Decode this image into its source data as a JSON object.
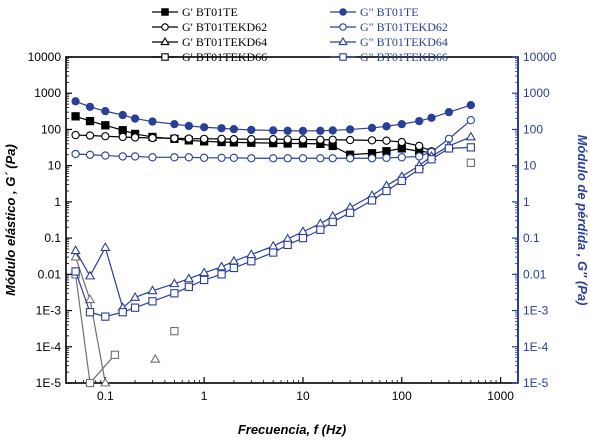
{
  "colors": {
    "gprime": "#000000",
    "gdouble": "#2a3f98",
    "gray": "#707070"
  },
  "chart_data": {
    "type": "scatter",
    "title": "",
    "xlabel": "Frecuencia, f (Hz)",
    "ylabel_left": "Módulo elástico , G´ (Pa)",
    "ylabel_right": "Módulo de pérdida , G'' (Pa)",
    "x_scale": "log",
    "y_scale": "log",
    "xlim": [
      0.04,
      1500
    ],
    "ylim": [
      1e-05,
      10000
    ],
    "x_ticks": [
      0.1,
      1,
      10,
      100,
      1000
    ],
    "x_tick_labels": [
      "0.1",
      "1",
      "10",
      "100",
      "1000"
    ],
    "y_ticks": [
      1e-05,
      0.0001,
      0.001,
      0.01,
      0.1,
      1,
      10,
      100,
      1000,
      10000
    ],
    "y_tick_labels": [
      "1E-5",
      "1E-4",
      "1E-3",
      "0.01",
      "0.1",
      "1",
      "10",
      "100",
      "1000",
      "10000"
    ],
    "grid": false,
    "legend_position": "top",
    "series": [
      {
        "name": "G' BT01TE",
        "axis": "left",
        "marker": "square-filled",
        "line": "solid",
        "color": "#000000",
        "x": [
          0.05,
          0.07,
          0.1,
          0.15,
          0.2,
          0.3,
          0.5,
          0.7,
          1,
          1.5,
          2,
          3,
          5,
          7,
          10,
          15,
          20,
          30,
          50,
          70,
          100,
          150,
          200
        ],
        "y": [
          230,
          170,
          130,
          95,
          75,
          62,
          55,
          50,
          47,
          45,
          44,
          43,
          42,
          41,
          41,
          40,
          35,
          20,
          22,
          25,
          30,
          25,
          23
        ]
      },
      {
        "name": "G' BT01TEKD62",
        "axis": "left",
        "marker": "circle-open",
        "line": "solid",
        "color": "#000000",
        "x": [
          0.05,
          0.07,
          0.1,
          0.15,
          0.2,
          0.3,
          0.5,
          0.7,
          1,
          1.5,
          2,
          3,
          5,
          7,
          10,
          15,
          20,
          30,
          50,
          70,
          100,
          150,
          200
        ],
        "y": [
          70,
          68,
          65,
          62,
          60,
          58,
          57,
          56,
          55,
          55,
          54,
          54,
          54,
          53,
          53,
          52,
          52,
          51,
          50,
          49,
          45,
          35,
          25
        ]
      },
      {
        "name": "G' BT01TEKD64",
        "axis": "left",
        "marker": "triangle-open",
        "line": "solid",
        "color": "#707070",
        "x": [
          0.05,
          0.07,
          0.1
        ],
        "y": [
          0.03,
          0.002,
          1e-05
        ]
      },
      {
        "name": "G' BT01TEKD64 (detached)",
        "axis": "left",
        "marker": "triangle-open",
        "line": "none",
        "color": "#707070",
        "x": [
          0.32
        ],
        "y": [
          4.5e-05
        ]
      },
      {
        "name": "G' BT01TEKD66",
        "axis": "left",
        "marker": "square-open",
        "line": "solid",
        "color": "#707070",
        "x": [
          0.05,
          0.07,
          0.125
        ],
        "y": [
          0.01,
          1e-05,
          6e-05
        ]
      },
      {
        "name": "G' BT01TEKD66 (detached)",
        "axis": "left",
        "marker": "square-open",
        "line": "none",
        "color": "#707070",
        "x": [
          0.5,
          500
        ],
        "y": [
          0.00027,
          12
        ]
      },
      {
        "name": "G\" BT01TE",
        "axis": "right",
        "marker": "circle-filled",
        "line": "solid",
        "color": "#2a3f98",
        "x": [
          0.05,
          0.07,
          0.1,
          0.15,
          0.2,
          0.3,
          0.5,
          0.7,
          1,
          1.5,
          2,
          3,
          5,
          7,
          10,
          15,
          20,
          30,
          50,
          70,
          100,
          150,
          200,
          300,
          500
        ],
        "y": [
          600,
          420,
          320,
          250,
          200,
          165,
          140,
          125,
          115,
          108,
          102,
          97,
          94,
          92,
          91,
          92,
          94,
          100,
          110,
          122,
          140,
          170,
          210,
          300,
          470
        ]
      },
      {
        "name": "G\" BT01TEKD62",
        "axis": "right",
        "marker": "circle-open",
        "line": "solid",
        "color": "#2a3f98",
        "x": [
          0.05,
          0.07,
          0.1,
          0.15,
          0.2,
          0.3,
          0.5,
          0.7,
          1,
          1.5,
          2,
          3,
          5,
          7,
          10,
          15,
          20,
          30,
          50,
          70,
          100,
          150,
          200,
          300,
          500
        ],
        "y": [
          21,
          20,
          19,
          18,
          18,
          17,
          17,
          17,
          16.5,
          16.5,
          16.5,
          16,
          16,
          16,
          16,
          16,
          16,
          16,
          16,
          16.5,
          17,
          18,
          24,
          55,
          180
        ]
      },
      {
        "name": "G\" BT01TEKD64",
        "axis": "right",
        "marker": "triangle-open",
        "line": "solid",
        "color": "#2a3f98",
        "x": [
          0.05,
          0.07,
          0.1,
          0.15,
          0.2,
          0.3,
          0.5,
          0.7,
          1,
          1.5,
          2,
          3,
          5,
          7,
          10,
          15,
          20,
          30,
          50,
          70,
          100,
          150,
          200,
          300,
          500
        ],
        "y": [
          0.045,
          0.009,
          0.055,
          0.0012,
          0.0023,
          0.0035,
          0.0055,
          0.0075,
          0.011,
          0.016,
          0.023,
          0.035,
          0.06,
          0.095,
          0.15,
          0.25,
          0.4,
          0.7,
          1.5,
          2.8,
          5,
          10,
          18,
          35,
          62
        ]
      },
      {
        "name": "G\" BT01TEKD66",
        "axis": "right",
        "marker": "square-open",
        "line": "solid",
        "color": "#2a3f98",
        "x": [
          0.05,
          0.07,
          0.1,
          0.15,
          0.2,
          0.3,
          0.5,
          0.7,
          1,
          1.5,
          2,
          3,
          5,
          7,
          10,
          15,
          20,
          30,
          50,
          70,
          100,
          150,
          200,
          300,
          500
        ],
        "y": [
          0.012,
          0.0009,
          0.00068,
          0.0009,
          0.0012,
          0.0018,
          0.003,
          0.0045,
          0.007,
          0.01,
          0.015,
          0.023,
          0.04,
          0.065,
          0.1,
          0.17,
          0.28,
          0.5,
          1.1,
          2,
          3.8,
          8,
          15,
          30,
          32
        ]
      }
    ]
  },
  "legend": {
    "left": [
      {
        "label": "G' BT01TE",
        "marker": "square-filled",
        "color": "#000000"
      },
      {
        "label": "G' BT01TEKD62",
        "marker": "circle-open",
        "color": "#000000"
      },
      {
        "label": "G' BT01TEKD64",
        "marker": "triangle-open",
        "color": "#000000"
      },
      {
        "label": "G' BT01TEKD66",
        "marker": "square-open",
        "color": "#000000"
      }
    ],
    "right": [
      {
        "label": "G\" BT01TE",
        "marker": "circle-filled",
        "color": "#2a3f98"
      },
      {
        "label": "G\" BT01TEKD62",
        "marker": "circle-open",
        "color": "#2a3f98"
      },
      {
        "label": "G\" BT01TEKD64",
        "marker": "triangle-open",
        "color": "#2a3f98"
      },
      {
        "label": "G\" BT01TEKD66",
        "marker": "square-open",
        "color": "#2a3f98"
      }
    ]
  }
}
